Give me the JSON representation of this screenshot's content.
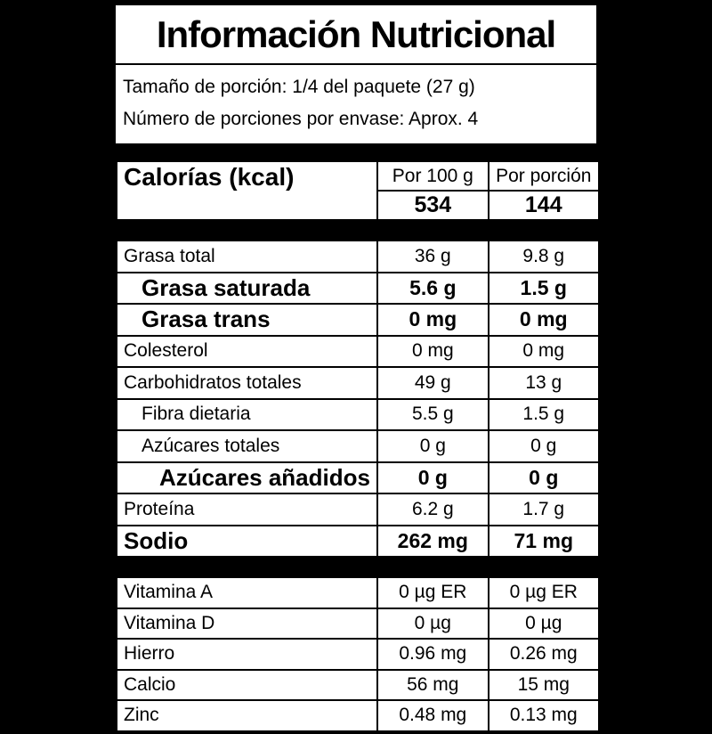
{
  "header": {
    "title": "Información Nutricional",
    "serving_size_line": "Tamaño de porción: 1/4 del paquete (27 g)",
    "servings_per_container_line": "Número de porciones por envase: Aprox. 4"
  },
  "columns": {
    "per_100g": "Por 100 g",
    "per_portion": "Por porción"
  },
  "calories": {
    "label": "Calorías (kcal)",
    "per_100g_value": "534",
    "per_portion_value": "144"
  },
  "nutrients": {
    "rows": [
      {
        "name": "Grasa total",
        "per_100g": "36 g",
        "per_portion": "9.8 g",
        "bold": false,
        "indent": 0
      },
      {
        "name": "Grasa saturada",
        "per_100g": "5.6 g",
        "per_portion": "1.5 g",
        "bold": true,
        "indent": 1
      },
      {
        "name": "Grasa trans",
        "per_100g": "0 mg",
        "per_portion": "0 mg",
        "bold": true,
        "indent": 1
      },
      {
        "name": "Colesterol",
        "per_100g": "0 mg",
        "per_portion": "0 mg",
        "bold": false,
        "indent": 0
      },
      {
        "name": "Carbohidratos totales",
        "per_100g": "49 g",
        "per_portion": "13 g",
        "bold": false,
        "indent": 0
      },
      {
        "name": "Fibra dietaria",
        "per_100g": "5.5 g",
        "per_portion": "1.5 g",
        "bold": false,
        "indent": 1
      },
      {
        "name": "Azúcares totales",
        "per_100g": "0 g",
        "per_portion": "0 g",
        "bold": false,
        "indent": 1
      },
      {
        "name": "Azúcares añadidos",
        "per_100g": "0 g",
        "per_portion": "0 g",
        "bold": true,
        "indent": 2
      },
      {
        "name": "Proteína",
        "per_100g": "6.2 g",
        "per_portion": "1.7 g",
        "bold": false,
        "indent": 0
      },
      {
        "name": "Sodio",
        "per_100g": "262 mg",
        "per_portion": "71 mg",
        "bold": true,
        "indent": 0
      }
    ]
  },
  "micronutrients": {
    "rows": [
      {
        "name": "Vitamina A",
        "per_100g": "0 µg ER",
        "per_portion": "0 µg ER",
        "bold": false,
        "indent": 0
      },
      {
        "name": "Vitamina D",
        "per_100g": "0 µg",
        "per_portion": "0 µg",
        "bold": false,
        "indent": 0
      },
      {
        "name": "Hierro",
        "per_100g": "0.96 mg",
        "per_portion": "0.26 mg",
        "bold": false,
        "indent": 0
      },
      {
        "name": "Calcio",
        "per_100g": "56 mg",
        "per_portion": "15 mg",
        "bold": false,
        "indent": 0
      },
      {
        "name": "Zinc",
        "per_100g": "0.48 mg",
        "per_portion": "0.13 mg",
        "bold": false,
        "indent": 0
      }
    ]
  },
  "colors": {
    "background": "#000000",
    "panel": "#ffffff",
    "text": "#000000",
    "border": "#000000"
  }
}
